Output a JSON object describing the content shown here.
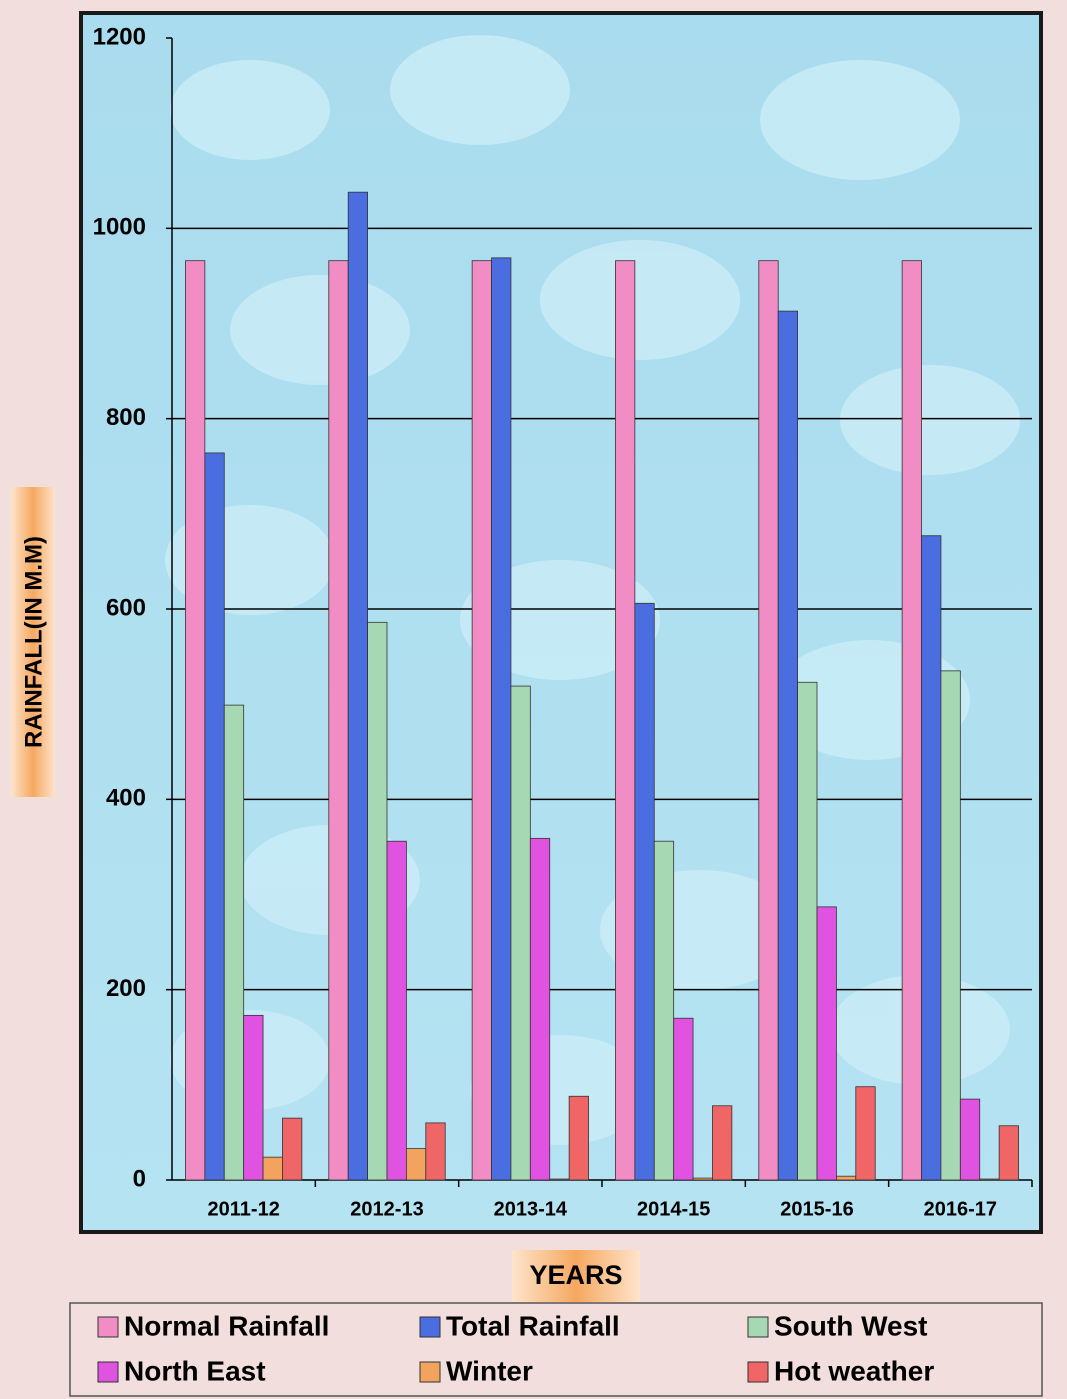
{
  "chart_data": {
    "type": "bar",
    "x_label": "YEARS",
    "y_label": "RAINFALL(IN M.M)",
    "categories": [
      "2011-12",
      "2012-13",
      "2013-14",
      "2014-15",
      "2015-16",
      "2016-17"
    ],
    "series": [
      {
        "name": "Normal Rainfall",
        "color": "#f28cc4",
        "values": [
          966,
          966,
          966,
          966,
          966,
          966
        ]
      },
      {
        "name": "Total Rainfall",
        "color": "#4a6ee0",
        "values": [
          764,
          1038,
          969,
          606,
          913,
          677
        ]
      },
      {
        "name": "South West",
        "color": "#a6d8b4",
        "values": [
          499,
          586,
          519,
          356,
          523,
          535
        ]
      },
      {
        "name": "North East",
        "color": "#e052e0",
        "values": [
          173,
          356,
          359,
          170,
          287,
          85
        ]
      },
      {
        "name": "Winter",
        "color": "#f2a45e",
        "values": [
          24,
          33,
          1,
          2,
          4,
          1
        ]
      },
      {
        "name": "Hot weather",
        "color": "#f06666",
        "values": [
          65,
          60,
          88,
          78,
          98,
          57
        ]
      }
    ],
    "ylim": [
      0,
      1200
    ],
    "yticks": [
      0,
      200,
      400,
      600,
      800,
      1000,
      1200
    ],
    "grid": true
  }
}
